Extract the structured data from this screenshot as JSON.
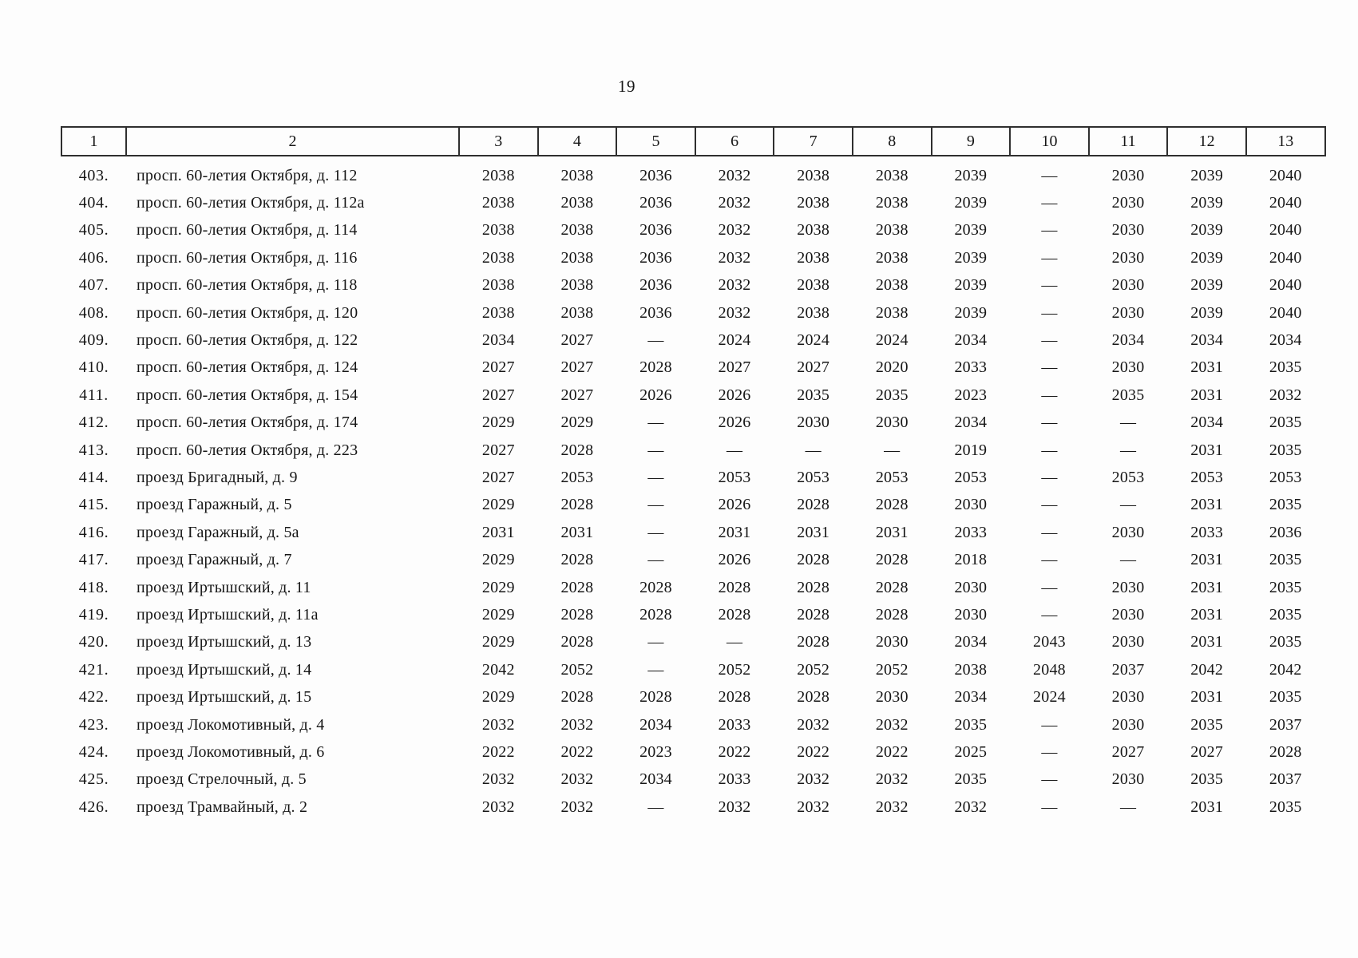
{
  "page": {
    "number": "19"
  },
  "table": {
    "columns": [
      "1",
      "2",
      "3",
      "4",
      "5",
      "6",
      "7",
      "8",
      "9",
      "10",
      "11",
      "12",
      "13"
    ],
    "rows": [
      {
        "num": "403.",
        "address": "просп. 60-летия Октября, д. 112",
        "values": [
          "2038",
          "2038",
          "2036",
          "2032",
          "2038",
          "2038",
          "2039",
          "—",
          "2030",
          "2039",
          "2040"
        ]
      },
      {
        "num": "404.",
        "address": "просп. 60-летия Октября, д. 112а",
        "values": [
          "2038",
          "2038",
          "2036",
          "2032",
          "2038",
          "2038",
          "2039",
          "—",
          "2030",
          "2039",
          "2040"
        ]
      },
      {
        "num": "405.",
        "address": "просп. 60-летия Октября, д. 114",
        "values": [
          "2038",
          "2038",
          "2036",
          "2032",
          "2038",
          "2038",
          "2039",
          "—",
          "2030",
          "2039",
          "2040"
        ]
      },
      {
        "num": "406.",
        "address": "просп. 60-летия Октября, д. 116",
        "values": [
          "2038",
          "2038",
          "2036",
          "2032",
          "2038",
          "2038",
          "2039",
          "—",
          "2030",
          "2039",
          "2040"
        ]
      },
      {
        "num": "407.",
        "address": "просп. 60-летия Октября, д. 118",
        "values": [
          "2038",
          "2038",
          "2036",
          "2032",
          "2038",
          "2038",
          "2039",
          "—",
          "2030",
          "2039",
          "2040"
        ]
      },
      {
        "num": "408.",
        "address": "просп. 60-летия Октября, д. 120",
        "values": [
          "2038",
          "2038",
          "2036",
          "2032",
          "2038",
          "2038",
          "2039",
          "—",
          "2030",
          "2039",
          "2040"
        ]
      },
      {
        "num": "409.",
        "address": "просп. 60-летия Октября, д. 122",
        "values": [
          "2034",
          "2027",
          "—",
          "2024",
          "2024",
          "2024",
          "2034",
          "—",
          "2034",
          "2034",
          "2034"
        ]
      },
      {
        "num": "410.",
        "address": "просп. 60-летия Октября, д. 124",
        "values": [
          "2027",
          "2027",
          "2028",
          "2027",
          "2027",
          "2020",
          "2033",
          "—",
          "2030",
          "2031",
          "2035"
        ]
      },
      {
        "num": "411.",
        "address": "просп. 60-летия Октября, д. 154",
        "values": [
          "2027",
          "2027",
          "2026",
          "2026",
          "2035",
          "2035",
          "2023",
          "—",
          "2035",
          "2031",
          "2032"
        ]
      },
      {
        "num": "412.",
        "address": "просп. 60-летия Октября, д. 174",
        "values": [
          "2029",
          "2029",
          "—",
          "2026",
          "2030",
          "2030",
          "2034",
          "—",
          "—",
          "2034",
          "2035"
        ]
      },
      {
        "num": "413.",
        "address": "просп. 60-летия Октября, д. 223",
        "values": [
          "2027",
          "2028",
          "—",
          "—",
          "—",
          "—",
          "2019",
          "—",
          "—",
          "2031",
          "2035"
        ]
      },
      {
        "num": "414.",
        "address": "проезд Бригадный, д. 9",
        "values": [
          "2027",
          "2053",
          "—",
          "2053",
          "2053",
          "2053",
          "2053",
          "—",
          "2053",
          "2053",
          "2053"
        ]
      },
      {
        "num": "415.",
        "address": "проезд Гаражный, д. 5",
        "values": [
          "2029",
          "2028",
          "—",
          "2026",
          "2028",
          "2028",
          "2030",
          "—",
          "—",
          "2031",
          "2035"
        ]
      },
      {
        "num": "416.",
        "address": "проезд Гаражный, д. 5а",
        "values": [
          "2031",
          "2031",
          "—",
          "2031",
          "2031",
          "2031",
          "2033",
          "—",
          "2030",
          "2033",
          "2036"
        ]
      },
      {
        "num": "417.",
        "address": "проезд Гаражный, д. 7",
        "values": [
          "2029",
          "2028",
          "—",
          "2026",
          "2028",
          "2028",
          "2018",
          "—",
          "—",
          "2031",
          "2035"
        ]
      },
      {
        "num": "418.",
        "address": "проезд Иртышский, д. 11",
        "values": [
          "2029",
          "2028",
          "2028",
          "2028",
          "2028",
          "2028",
          "2030",
          "—",
          "2030",
          "2031",
          "2035"
        ]
      },
      {
        "num": "419.",
        "address": "проезд Иртышский, д. 11а",
        "values": [
          "2029",
          "2028",
          "2028",
          "2028",
          "2028",
          "2028",
          "2030",
          "—",
          "2030",
          "2031",
          "2035"
        ]
      },
      {
        "num": "420.",
        "address": "проезд Иртышский, д. 13",
        "values": [
          "2029",
          "2028",
          "—",
          "—",
          "2028",
          "2030",
          "2034",
          "2043",
          "2030",
          "2031",
          "2035"
        ]
      },
      {
        "num": "421.",
        "address": "проезд Иртышский, д. 14",
        "values": [
          "2042",
          "2052",
          "—",
          "2052",
          "2052",
          "2052",
          "2038",
          "2048",
          "2037",
          "2042",
          "2042"
        ]
      },
      {
        "num": "422.",
        "address": "проезд Иртышский, д. 15",
        "values": [
          "2029",
          "2028",
          "2028",
          "2028",
          "2028",
          "2030",
          "2034",
          "2024",
          "2030",
          "2031",
          "2035"
        ]
      },
      {
        "num": "423.",
        "address": "проезд Локомотивный, д. 4",
        "values": [
          "2032",
          "2032",
          "2034",
          "2033",
          "2032",
          "2032",
          "2035",
          "—",
          "2030",
          "2035",
          "2037"
        ]
      },
      {
        "num": "424.",
        "address": "проезд Локомотивный, д. 6",
        "values": [
          "2022",
          "2022",
          "2023",
          "2022",
          "2022",
          "2022",
          "2025",
          "—",
          "2027",
          "2027",
          "2028"
        ]
      },
      {
        "num": "425.",
        "address": "проезд Стрелочный, д. 5",
        "values": [
          "2032",
          "2032",
          "2034",
          "2033",
          "2032",
          "2032",
          "2035",
          "—",
          "2030",
          "2035",
          "2037"
        ]
      },
      {
        "num": "426.",
        "address": "проезд Трамвайный, д. 2",
        "values": [
          "2032",
          "2032",
          "—",
          "2032",
          "2032",
          "2032",
          "2032",
          "—",
          "—",
          "2031",
          "2035"
        ]
      }
    ]
  }
}
